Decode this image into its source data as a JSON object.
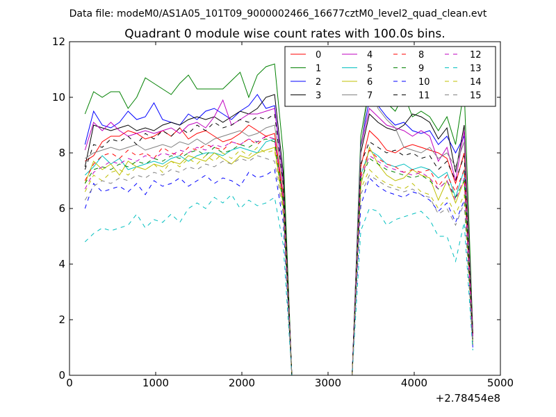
{
  "suptitle": "Data file: modeM0/AS1A05_101T09_9000002466_16677cztM0_level2_quad_clean.evt",
  "chart_data": {
    "type": "line",
    "title": "Quadrant 0 module wise count rates with 100.0s bins.",
    "xlabel": "",
    "ylabel": "",
    "x_offset_label": "+2.78454e8",
    "xlim": [
      0,
      5000
    ],
    "ylim": [
      0,
      12
    ],
    "xticks": [
      0,
      1000,
      2000,
      3000,
      4000,
      5000
    ],
    "yticks": [
      0,
      2,
      4,
      6,
      8,
      10,
      12
    ],
    "grid": false,
    "legend": {
      "placement": "top-right",
      "columns": 4
    },
    "x": [
      180,
      280,
      380,
      480,
      580,
      680,
      780,
      880,
      980,
      1080,
      1180,
      1280,
      1380,
      1480,
      1580,
      1680,
      1780,
      1880,
      1980,
      2080,
      2180,
      2280,
      2380,
      2480,
      2580,
      2680,
      2780,
      2880,
      2980,
      3080,
      3180,
      3280,
      3380,
      3480,
      3580,
      3680,
      3780,
      3880,
      3980,
      4080,
      4180,
      4280,
      4380,
      4480,
      4580,
      4680
    ],
    "series": [
      {
        "name": "0",
        "color": "#ff0000",
        "dash": "solid",
        "values": [
          7.7,
          7.9,
          8.4,
          8.6,
          8.6,
          8.8,
          8.7,
          8.5,
          8.6,
          8.8,
          8.6,
          8.9,
          8.5,
          8.7,
          8.8,
          8.6,
          8.4,
          8.5,
          8.7,
          9.0,
          8.8,
          8.6,
          8.7,
          6.5,
          0.0,
          0.0,
          0.0,
          0.0,
          0.0,
          0.0,
          0.0,
          0.0,
          7.5,
          8.8,
          8.5,
          8.1,
          8.0,
          8.2,
          8.3,
          8.2,
          8.1,
          8.0,
          7.8,
          6.9,
          8.0,
          1.5
        ]
      },
      {
        "name": "1",
        "color": "#008000",
        "dash": "solid",
        "values": [
          9.4,
          10.2,
          10.0,
          10.2,
          10.2,
          9.6,
          10.0,
          10.7,
          10.5,
          10.3,
          10.1,
          10.5,
          10.8,
          10.3,
          10.3,
          10.3,
          10.3,
          10.6,
          10.9,
          10.0,
          10.8,
          11.1,
          11.2,
          8.0,
          0.0,
          0.0,
          0.0,
          0.0,
          0.0,
          0.0,
          0.0,
          0.0,
          8.6,
          10.4,
          10.2,
          9.8,
          9.5,
          10.1,
          9.3,
          9.5,
          9.3,
          8.8,
          9.3,
          8.3,
          10.3,
          1.6
        ]
      },
      {
        "name": "2",
        "color": "#0000ff",
        "dash": "solid",
        "values": [
          8.3,
          9.5,
          9.0,
          8.9,
          9.1,
          9.5,
          9.2,
          9.3,
          9.8,
          9.2,
          9.1,
          9.0,
          9.4,
          9.2,
          9.5,
          9.6,
          9.4,
          9.2,
          9.5,
          9.7,
          10.1,
          9.6,
          9.7,
          7.0,
          0.0,
          0.0,
          0.0,
          0.0,
          0.0,
          0.0,
          0.0,
          0.0,
          8.3,
          9.9,
          9.7,
          9.3,
          9.0,
          9.1,
          8.8,
          8.7,
          8.8,
          8.3,
          8.6,
          8.0,
          8.6,
          1.4
        ]
      },
      {
        "name": "3",
        "color": "#000000",
        "dash": "solid",
        "values": [
          7.5,
          9.0,
          8.9,
          8.8,
          8.9,
          9.0,
          8.8,
          8.9,
          8.8,
          9.0,
          9.1,
          9.0,
          9.2,
          9.3,
          9.2,
          9.3,
          9.1,
          9.3,
          9.5,
          9.4,
          9.6,
          10.0,
          10.1,
          7.3,
          0.0,
          0.0,
          0.0,
          0.0,
          0.0,
          0.0,
          0.0,
          0.0,
          8.0,
          9.4,
          9.1,
          8.9,
          8.8,
          9.0,
          9.4,
          9.3,
          9.1,
          8.5,
          8.9,
          7.3,
          9.0,
          1.5
        ]
      },
      {
        "name": "4",
        "color": "#bf00bf",
        "dash": "solid",
        "values": [
          8.1,
          9.1,
          8.8,
          9.1,
          8.8,
          8.6,
          8.7,
          8.8,
          8.7,
          8.8,
          8.9,
          8.7,
          9.0,
          9.1,
          8.9,
          9.3,
          9.9,
          9.0,
          9.2,
          9.4,
          9.4,
          9.5,
          9.6,
          7.0,
          0.0,
          0.0,
          0.0,
          0.0,
          0.0,
          0.0,
          0.0,
          0.0,
          8.2,
          9.6,
          9.3,
          9.0,
          8.9,
          8.8,
          8.6,
          8.8,
          8.6,
          7.7,
          8.2,
          7.0,
          8.8,
          1.4
        ]
      },
      {
        "name": "5",
        "color": "#00bfbf",
        "dash": "solid",
        "values": [
          7.2,
          7.5,
          7.9,
          7.6,
          7.8,
          7.4,
          7.5,
          7.6,
          7.7,
          7.6,
          7.8,
          7.9,
          7.7,
          7.9,
          8.0,
          8.0,
          7.9,
          8.1,
          8.2,
          8.1,
          8.0,
          8.4,
          8.5,
          6.3,
          0.0,
          0.0,
          0.0,
          0.0,
          0.0,
          0.0,
          0.0,
          0.0,
          7.2,
          8.1,
          7.9,
          7.6,
          7.5,
          7.6,
          7.4,
          7.5,
          7.4,
          7.1,
          7.3,
          6.4,
          7.4,
          1.2
        ]
      },
      {
        "name": "6",
        "color": "#bfbf00",
        "dash": "solid",
        "values": [
          6.9,
          7.7,
          7.4,
          7.6,
          7.2,
          7.7,
          7.5,
          7.4,
          7.6,
          7.5,
          7.7,
          7.6,
          7.9,
          7.8,
          7.7,
          8.0,
          7.8,
          7.6,
          7.9,
          7.8,
          8.0,
          8.1,
          8.2,
          6.1,
          0.0,
          0.0,
          0.0,
          0.0,
          0.0,
          0.0,
          0.0,
          0.0,
          6.8,
          8.2,
          7.6,
          7.2,
          7.0,
          7.1,
          7.4,
          7.2,
          7.1,
          6.3,
          7.0,
          6.2,
          7.0,
          1.1
        ]
      },
      {
        "name": "7",
        "color": "#808080",
        "dash": "solid",
        "values": [
          7.8,
          8.0,
          8.1,
          8.2,
          8.1,
          8.2,
          8.3,
          8.1,
          8.2,
          8.3,
          8.2,
          8.4,
          8.3,
          8.5,
          8.3,
          8.5,
          8.6,
          8.7,
          8.8,
          8.6,
          8.7,
          8.9,
          9.0,
          6.8,
          0.0,
          0.0,
          0.0,
          0.0,
          0.0,
          0.0,
          0.0,
          0.0,
          8.2,
          10.4,
          9.6,
          9.2,
          8.9,
          8.2,
          8.1,
          8.0,
          8.2,
          7.8,
          8.0,
          7.5,
          8.4,
          1.3
        ]
      },
      {
        "name": "8",
        "color": "#ff0000",
        "dash": "dashed",
        "values": [
          7.0,
          7.6,
          7.9,
          8.0,
          7.8,
          8.1,
          7.9,
          8.0,
          7.8,
          8.2,
          8.0,
          7.9,
          8.2,
          8.1,
          8.3,
          8.2,
          8.1,
          8.4,
          8.3,
          8.5,
          8.3,
          8.6,
          8.5,
          6.4,
          0.0,
          0.0,
          0.0,
          0.0,
          0.0,
          0.0,
          0.0,
          0.0,
          7.2,
          8.1,
          7.8,
          7.6,
          7.5,
          7.3,
          7.4,
          7.3,
          7.4,
          6.8,
          7.2,
          6.6,
          7.4,
          1.3
        ]
      },
      {
        "name": "9",
        "color": "#008000",
        "dash": "dashed",
        "values": [
          6.9,
          7.4,
          7.5,
          7.4,
          7.6,
          7.5,
          7.7,
          7.6,
          7.8,
          7.7,
          7.9,
          7.8,
          8.0,
          8.1,
          7.9,
          8.2,
          8.0,
          8.1,
          8.3,
          8.2,
          8.4,
          8.5,
          8.4,
          6.2,
          0.0,
          0.0,
          0.0,
          0.0,
          0.0,
          0.0,
          0.0,
          0.0,
          7.0,
          7.8,
          7.6,
          7.4,
          7.3,
          7.2,
          7.1,
          7.2,
          7.0,
          6.7,
          7.0,
          6.4,
          7.0,
          1.2
        ]
      },
      {
        "name": "10",
        "color": "#0000ff",
        "dash": "dashed",
        "values": [
          6.0,
          6.9,
          6.6,
          6.7,
          6.8,
          6.6,
          6.9,
          6.5,
          7.0,
          6.8,
          6.9,
          7.1,
          6.8,
          7.0,
          7.2,
          6.9,
          7.1,
          7.0,
          6.8,
          7.3,
          7.1,
          7.2,
          7.4,
          5.5,
          0.0,
          0.0,
          0.0,
          0.0,
          0.0,
          0.0,
          0.0,
          0.0,
          6.1,
          7.1,
          6.8,
          6.6,
          6.5,
          6.4,
          6.6,
          6.5,
          6.3,
          5.9,
          6.2,
          5.5,
          6.3,
          1.0
        ]
      },
      {
        "name": "11",
        "color": "#000000",
        "dash": "dashed",
        "values": [
          7.4,
          8.3,
          8.2,
          8.5,
          8.4,
          8.6,
          8.3,
          8.7,
          8.5,
          8.8,
          8.6,
          8.9,
          8.7,
          9.0,
          8.8,
          9.1,
          8.9,
          9.0,
          9.2,
          9.1,
          9.3,
          9.2,
          9.4,
          6.9,
          0.0,
          0.0,
          0.0,
          0.0,
          0.0,
          0.0,
          0.0,
          0.0,
          7.6,
          8.4,
          8.2,
          8.0,
          8.1,
          7.9,
          8.0,
          7.8,
          7.9,
          7.4,
          7.7,
          7.0,
          7.9,
          1.3
        ]
      },
      {
        "name": "12",
        "color": "#bf00bf",
        "dash": "dashed",
        "values": [
          6.7,
          7.3,
          7.5,
          7.7,
          7.6,
          7.8,
          7.7,
          7.9,
          7.8,
          8.0,
          7.9,
          8.1,
          8.0,
          8.2,
          8.1,
          8.3,
          8.2,
          8.4,
          8.3,
          8.5,
          8.4,
          8.6,
          8.5,
          6.3,
          0.0,
          0.0,
          0.0,
          0.0,
          0.0,
          0.0,
          0.0,
          0.0,
          7.1,
          7.9,
          7.7,
          7.5,
          7.4,
          7.3,
          7.2,
          7.3,
          7.1,
          6.7,
          7.0,
          6.3,
          7.1,
          1.2
        ]
      },
      {
        "name": "13",
        "color": "#00bfbf",
        "dash": "dashed",
        "values": [
          4.8,
          5.1,
          5.3,
          5.2,
          5.3,
          5.4,
          5.8,
          5.3,
          5.6,
          5.5,
          5.8,
          5.5,
          6.0,
          6.2,
          6.0,
          6.4,
          6.2,
          6.5,
          6.0,
          6.3,
          6.1,
          6.2,
          6.4,
          4.7,
          0.0,
          0.0,
          0.0,
          0.0,
          0.0,
          0.0,
          0.0,
          0.0,
          5.2,
          6.0,
          5.9,
          5.4,
          5.6,
          5.7,
          5.8,
          5.9,
          5.6,
          5.0,
          5.0,
          4.1,
          5.5,
          0.9
        ]
      },
      {
        "name": "14",
        "color": "#bfbf00",
        "dash": "dashed",
        "values": [
          6.6,
          7.2,
          7.0,
          7.3,
          7.4,
          7.2,
          7.5,
          7.4,
          7.6,
          7.3,
          7.7,
          7.5,
          7.8,
          7.6,
          7.9,
          7.7,
          8.0,
          7.8,
          8.1,
          7.9,
          8.2,
          8.0,
          8.1,
          6.0,
          0.0,
          0.0,
          0.0,
          0.0,
          0.0,
          0.0,
          0.0,
          0.0,
          6.7,
          7.4,
          7.1,
          6.9,
          6.8,
          6.7,
          6.9,
          6.6,
          6.5,
          6.0,
          6.4,
          5.8,
          6.5,
          1.1
        ]
      },
      {
        "name": "15",
        "color": "#808080",
        "dash": "dashed",
        "values": [
          6.3,
          6.8,
          7.0,
          6.9,
          7.1,
          7.0,
          7.2,
          7.1,
          7.3,
          7.2,
          7.4,
          7.3,
          7.5,
          7.4,
          7.6,
          7.5,
          7.7,
          7.6,
          7.8,
          7.7,
          7.9,
          7.8,
          7.7,
          5.8,
          0.0,
          0.0,
          0.0,
          0.0,
          0.0,
          0.0,
          0.0,
          0.0,
          6.5,
          7.2,
          7.0,
          6.8,
          6.7,
          6.6,
          6.7,
          6.5,
          6.4,
          5.8,
          6.0,
          5.4,
          6.2,
          1.1
        ]
      }
    ]
  }
}
